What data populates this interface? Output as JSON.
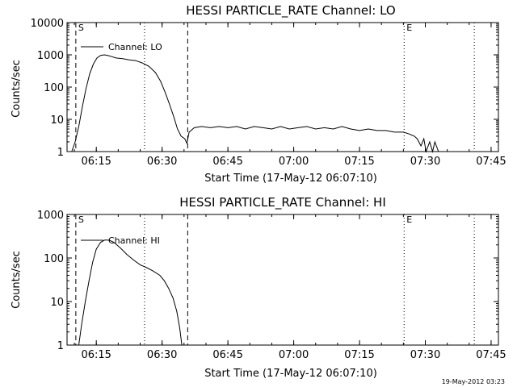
{
  "chart_data": [
    {
      "type": "line",
      "title": "HESSI PARTICLE_RATE Channel: LO",
      "xlabel": "Start Time (17-May-12 06:07:10)",
      "ylabel": "Counts/sec",
      "yscale": "log",
      "xlim": [
        "06:08:20",
        "07:46:40"
      ],
      "ylim": [
        1,
        10000
      ],
      "xticks": [
        "06:15",
        "06:30",
        "06:45",
        "07:00",
        "07:15",
        "07:30",
        "07:45"
      ],
      "yticks": [
        "1",
        "10",
        "100",
        "1000",
        "10000"
      ],
      "legend": "top-left",
      "series": [
        {
          "name": "Channel: LO",
          "x": [
            "06:09:24",
            "06:10:10",
            "06:11:00",
            "06:11:50",
            "06:12:40",
            "06:13:30",
            "06:14:20",
            "06:15:10",
            "06:16:00",
            "06:16:50",
            "06:17:40",
            "06:18:30",
            "06:19:30",
            "06:21:00",
            "06:22:30",
            "06:24:00",
            "06:25:30",
            "06:27:00",
            "06:28:30",
            "06:29:40",
            "06:30:40",
            "06:31:40",
            "06:32:40",
            "06:33:30",
            "06:34:20",
            "06:35:10",
            "06:35:40",
            "06:36:10",
            "06:37:20",
            "06:39:00",
            "06:41:00",
            "06:43:00",
            "06:45:00",
            "06:47:00",
            "06:49:00",
            "06:51:00",
            "06:53:00",
            "06:55:00",
            "06:57:00",
            "06:59:00",
            "07:01:00",
            "07:03:00",
            "07:05:00",
            "07:07:00",
            "07:09:00",
            "07:11:00",
            "07:13:00",
            "07:15:00",
            "07:17:00",
            "07:19:00",
            "07:21:00",
            "07:23:00",
            "07:25:00",
            "07:26:20",
            "07:27:30",
            "07:28:10",
            "07:29:00",
            "07:29:40",
            "07:30:10",
            "07:31:00",
            "07:31:40",
            "07:32:10",
            "07:33:00"
          ],
          "values": [
            1,
            2,
            6,
            25,
            90,
            260,
            520,
            800,
            960,
            1000,
            950,
            880,
            800,
            760,
            700,
            660,
            560,
            440,
            280,
            150,
            70,
            30,
            12,
            5,
            3,
            2.5,
            1.8,
            4,
            5.5,
            6,
            5.5,
            6,
            5.5,
            6,
            5,
            6,
            5.5,
            5,
            6,
            5,
            5.5,
            6,
            5,
            5.5,
            5,
            6,
            5,
            4.5,
            5,
            4.5,
            4.5,
            4,
            4,
            3.5,
            3,
            2.5,
            1.5,
            2.5,
            1,
            2,
            1,
            2,
            1
          ]
        }
      ],
      "vlines": [
        {
          "label": "S",
          "x": "06:10:20",
          "style": "dashed"
        },
        {
          "x": "06:35:50",
          "style": "dashed"
        },
        {
          "x": "06:26:00",
          "style": "dotted"
        },
        {
          "label": "E",
          "x": "07:25:10",
          "style": "dotted"
        },
        {
          "x": "07:41:10",
          "style": "dotted"
        }
      ]
    },
    {
      "type": "line",
      "title": "HESSI PARTICLE_RATE Channel: HI",
      "xlabel": "Start Time (17-May-12 06:07:10)",
      "ylabel": "Counts/sec",
      "yscale": "log",
      "xlim": [
        "06:08:20",
        "07:46:40"
      ],
      "ylim": [
        1,
        1000
      ],
      "xticks": [
        "06:15",
        "06:30",
        "06:45",
        "07:00",
        "07:15",
        "07:30",
        "07:45"
      ],
      "yticks": [
        "1",
        "10",
        "100",
        "1000"
      ],
      "legend": "top-left",
      "series": [
        {
          "name": "Channel: HI",
          "x": [
            "06:11:00",
            "06:11:40",
            "06:12:30",
            "06:13:20",
            "06:14:10",
            "06:15:00",
            "06:16:00",
            "06:17:00",
            "06:18:00",
            "06:19:00",
            "06:20:30",
            "06:22:00",
            "06:23:30",
            "06:25:00",
            "06:26:30",
            "06:28:00",
            "06:29:30",
            "06:30:30",
            "06:31:30",
            "06:32:30",
            "06:33:20",
            "06:34:00",
            "06:34:30"
          ],
          "values": [
            1,
            3,
            10,
            30,
            80,
            160,
            230,
            260,
            255,
            230,
            170,
            120,
            90,
            70,
            60,
            50,
            40,
            30,
            20,
            12,
            6,
            2.5,
            1
          ]
        }
      ],
      "vlines": [
        {
          "label": "S",
          "x": "06:10:20",
          "style": "dashed"
        },
        {
          "x": "06:35:50",
          "style": "dashed"
        },
        {
          "x": "06:26:00",
          "style": "dotted"
        },
        {
          "label": "E",
          "x": "07:25:10",
          "style": "dotted"
        },
        {
          "x": "07:41:10",
          "style": "dotted"
        }
      ]
    }
  ],
  "footer": {
    "timestamp": "19-May-2012 03:23"
  }
}
